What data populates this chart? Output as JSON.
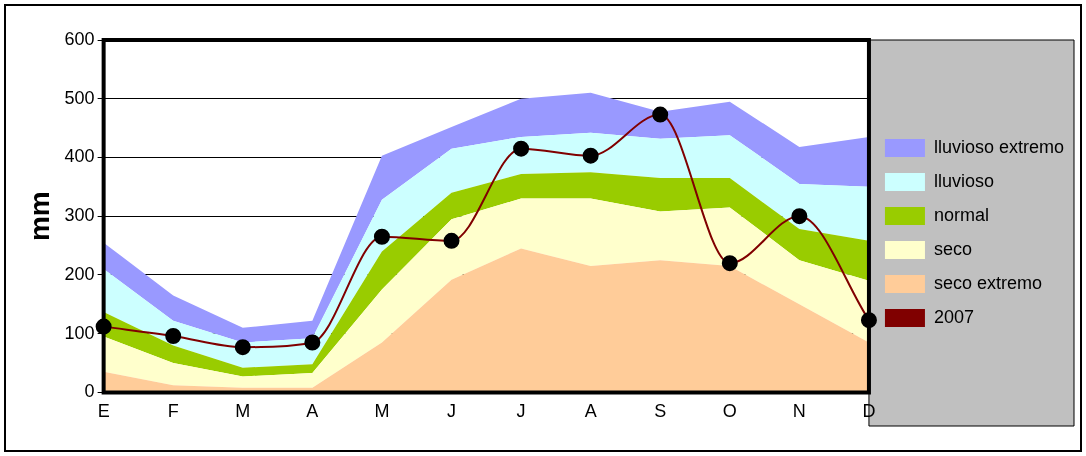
{
  "chart_data": {
    "type": "area",
    "ylabel": "mm",
    "categories": [
      "E",
      "F",
      "M",
      "A",
      "M",
      "J",
      "J",
      "A",
      "S",
      "O",
      "N",
      "D"
    ],
    "stacked": true,
    "ylim": [
      0,
      600
    ],
    "yticks": [
      0,
      100,
      200,
      300,
      400,
      500,
      600
    ],
    "grid": "y",
    "legend": "right",
    "series": [
      {
        "name": "seco extremo",
        "color": "#ffcc99",
        "values": [
          35,
          12,
          8,
          8,
          85,
          192,
          245,
          215,
          225,
          215,
          150,
          85
        ]
      },
      {
        "name": "seco",
        "color": "#ffffcc",
        "values": [
          60,
          38,
          19,
          25,
          90,
          103,
          85,
          115,
          83,
          100,
          75,
          105
        ]
      },
      {
        "name": "normal",
        "color": "#99cc00",
        "values": [
          42,
          30,
          15,
          15,
          65,
          45,
          42,
          45,
          57,
          50,
          53,
          68
        ]
      },
      {
        "name": "lluvioso",
        "color": "#ccffff",
        "values": [
          73,
          42,
          43,
          44,
          88,
          75,
          63,
          67,
          67,
          73,
          77,
          92
        ]
      },
      {
        "name": "lluvioso extremo",
        "color": "#9999ff",
        "values": [
          45,
          43,
          25,
          30,
          75,
          37,
          65,
          68,
          46,
          57,
          63,
          85
        ]
      },
      {
        "name": "2007",
        "type": "line",
        "color": "#800000",
        "marker": "circle",
        "values": [
          112,
          96,
          77,
          85,
          265,
          258,
          415,
          403,
          473,
          220,
          300,
          123
        ]
      }
    ]
  }
}
